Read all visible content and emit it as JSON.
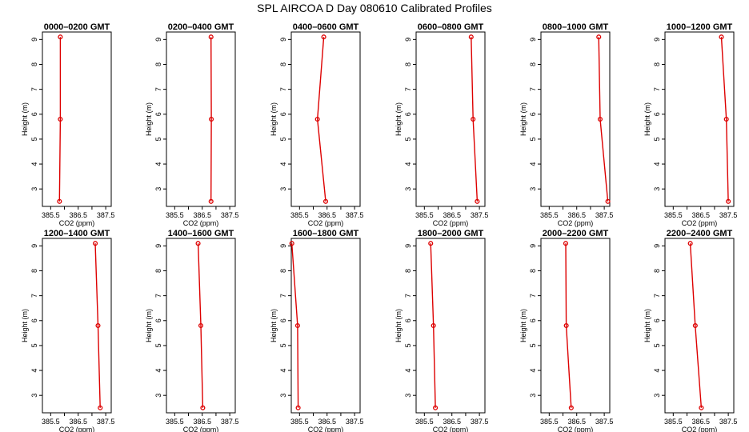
{
  "title": "SPL AIRCOA D  Day 080610  Calibrated Profiles",
  "chart_data": [
    {
      "type": "line",
      "title": "0000–0200 GMT",
      "xlabel": "CO2 (ppm)",
      "ylabel": "Height (m)",
      "xlim": [
        385.2,
        387.7
      ],
      "ylim": [
        2.3,
        9.3
      ],
      "xticks": [
        "385.5",
        "386.5",
        "387.5"
      ],
      "xtick_values": [
        385.5,
        386.5,
        387.5
      ],
      "yticks": [
        "3",
        "4",
        "5",
        "6",
        "7",
        "8",
        "9"
      ],
      "x": [
        385.85,
        385.85,
        385.82
      ],
      "y": [
        9.1,
        5.8,
        2.5
      ],
      "color": "#dd0000"
    },
    {
      "type": "line",
      "title": "0200–0400 GMT",
      "xlabel": "CO2 (ppm)",
      "ylabel": "Height (m)",
      "xlim": [
        385.2,
        387.7
      ],
      "ylim": [
        2.3,
        9.3
      ],
      "xticks": [
        "385.5",
        "386.5",
        "387.5"
      ],
      "xtick_values": [
        385.5,
        386.5,
        387.5
      ],
      "yticks": [
        "3",
        "4",
        "5",
        "6",
        "7",
        "8",
        "9"
      ],
      "x": [
        386.82,
        386.83,
        386.82
      ],
      "y": [
        9.1,
        5.8,
        2.5
      ],
      "color": "#dd0000"
    },
    {
      "type": "line",
      "title": "0400–0600 GMT",
      "xlabel": "CO2 (ppm)",
      "ylabel": "Height (m)",
      "xlim": [
        385.2,
        387.7
      ],
      "ylim": [
        2.3,
        9.3
      ],
      "xticks": [
        "385.5",
        "386.5",
        "387.5"
      ],
      "xtick_values": [
        385.5,
        386.5,
        387.5
      ],
      "yticks": [
        "3",
        "4",
        "5",
        "6",
        "7",
        "8",
        "9"
      ],
      "x": [
        386.38,
        386.15,
        386.45
      ],
      "y": [
        9.1,
        5.8,
        2.5
      ],
      "color": "#dd0000"
    },
    {
      "type": "line",
      "title": "0600–0800 GMT",
      "xlabel": "CO2 (ppm)",
      "ylabel": "Height (m)",
      "xlim": [
        385.2,
        387.7
      ],
      "ylim": [
        2.3,
        9.3
      ],
      "xticks": [
        "385.5",
        "386.5",
        "387.5"
      ],
      "xtick_values": [
        385.5,
        386.5,
        387.5
      ],
      "yticks": [
        "3",
        "4",
        "5",
        "6",
        "7",
        "8",
        "9"
      ],
      "x": [
        387.2,
        387.27,
        387.42
      ],
      "y": [
        9.1,
        5.8,
        2.5
      ],
      "color": "#dd0000"
    },
    {
      "type": "line",
      "title": "0800–1000 GMT",
      "xlabel": "CO2 (ppm)",
      "ylabel": "Height (m)",
      "xlim": [
        385.2,
        387.7
      ],
      "ylim": [
        2.3,
        9.3
      ],
      "xticks": [
        "385.5",
        "386.5",
        "387.5"
      ],
      "xtick_values": [
        385.5,
        386.5,
        387.5
      ],
      "yticks": [
        "3",
        "4",
        "5",
        "6",
        "7",
        "8",
        "9"
      ],
      "x": [
        387.3,
        387.35,
        387.63
      ],
      "y": [
        9.1,
        5.8,
        2.5
      ],
      "color": "#dd0000"
    },
    {
      "type": "line",
      "title": "1000–1200 GMT",
      "xlabel": "CO2 (ppm)",
      "ylabel": "Height (m)",
      "xlim": [
        385.2,
        387.7
      ],
      "ylim": [
        2.3,
        9.3
      ],
      "xticks": [
        "385.5",
        "386.5",
        "387.5"
      ],
      "xtick_values": [
        385.5,
        386.5,
        387.5
      ],
      "yticks": [
        "3",
        "4",
        "5",
        "6",
        "7",
        "8",
        "9"
      ],
      "x": [
        387.25,
        387.43,
        387.5
      ],
      "y": [
        9.1,
        5.8,
        2.5
      ],
      "color": "#dd0000"
    },
    {
      "type": "line",
      "title": "1200–1400 GMT",
      "xlabel": "CO2 (ppm)",
      "ylabel": "Height (m)",
      "xlim": [
        385.2,
        387.7
      ],
      "ylim": [
        2.3,
        9.3
      ],
      "xticks": [
        "385.5",
        "386.5",
        "387.5"
      ],
      "xtick_values": [
        385.5,
        386.5,
        387.5
      ],
      "yticks": [
        "3",
        "4",
        "5",
        "6",
        "7",
        "8",
        "9"
      ],
      "x": [
        387.12,
        387.22,
        387.3
      ],
      "y": [
        9.1,
        5.8,
        2.5
      ],
      "color": "#dd0000"
    },
    {
      "type": "line",
      "title": "1400–1600 GMT",
      "xlabel": "CO2 (ppm)",
      "ylabel": "Height (m)",
      "xlim": [
        385.2,
        387.7
      ],
      "ylim": [
        2.3,
        9.3
      ],
      "xticks": [
        "385.5",
        "386.5",
        "387.5"
      ],
      "xtick_values": [
        385.5,
        386.5,
        387.5
      ],
      "yticks": [
        "3",
        "4",
        "5",
        "6",
        "7",
        "8",
        "9"
      ],
      "x": [
        386.35,
        386.45,
        386.52
      ],
      "y": [
        9.1,
        5.8,
        2.5
      ],
      "color": "#dd0000"
    },
    {
      "type": "line",
      "title": "1600–1800 GMT",
      "xlabel": "CO2 (ppm)",
      "ylabel": "Height (m)",
      "xlim": [
        385.2,
        387.7
      ],
      "ylim": [
        2.3,
        9.3
      ],
      "xticks": [
        "385.5",
        "386.5",
        "387.5"
      ],
      "xtick_values": [
        385.5,
        386.5,
        387.5
      ],
      "yticks": [
        "3",
        "4",
        "5",
        "6",
        "7",
        "8",
        "9"
      ],
      "x": [
        385.22,
        385.43,
        385.45
      ],
      "y": [
        9.1,
        5.8,
        2.5
      ],
      "color": "#dd0000"
    },
    {
      "type": "line",
      "title": "1800–2000 GMT",
      "xlabel": "CO2 (ppm)",
      "ylabel": "Height (m)",
      "xlim": [
        385.2,
        387.7
      ],
      "ylim": [
        2.3,
        9.3
      ],
      "xticks": [
        "385.5",
        "386.5",
        "387.5"
      ],
      "xtick_values": [
        385.5,
        386.5,
        387.5
      ],
      "yticks": [
        "3",
        "4",
        "5",
        "6",
        "7",
        "8",
        "9"
      ],
      "x": [
        385.73,
        385.83,
        385.9
      ],
      "y": [
        9.1,
        5.8,
        2.5
      ],
      "color": "#dd0000"
    },
    {
      "type": "line",
      "title": "2000–2200 GMT",
      "xlabel": "CO2 (ppm)",
      "ylabel": "Height (m)",
      "xlim": [
        385.2,
        387.7
      ],
      "ylim": [
        2.3,
        9.3
      ],
      "xticks": [
        "385.5",
        "386.5",
        "387.5"
      ],
      "xtick_values": [
        385.5,
        386.5,
        387.5
      ],
      "yticks": [
        "3",
        "4",
        "5",
        "6",
        "7",
        "8",
        "9"
      ],
      "x": [
        386.1,
        386.12,
        386.3
      ],
      "y": [
        9.1,
        5.8,
        2.5
      ],
      "color": "#dd0000"
    },
    {
      "type": "line",
      "title": "2200–2400 GMT",
      "xlabel": "CO2 (ppm)",
      "ylabel": "Height (m)",
      "xlim": [
        385.2,
        387.7
      ],
      "ylim": [
        2.3,
        9.3
      ],
      "xticks": [
        "385.5",
        "386.5",
        "387.5"
      ],
      "xtick_values": [
        385.5,
        386.5,
        387.5
      ],
      "yticks": [
        "3",
        "4",
        "5",
        "6",
        "7",
        "8",
        "9"
      ],
      "x": [
        386.12,
        386.3,
        386.52
      ],
      "y": [
        9.1,
        5.8,
        2.5
      ],
      "color": "#dd0000"
    }
  ]
}
